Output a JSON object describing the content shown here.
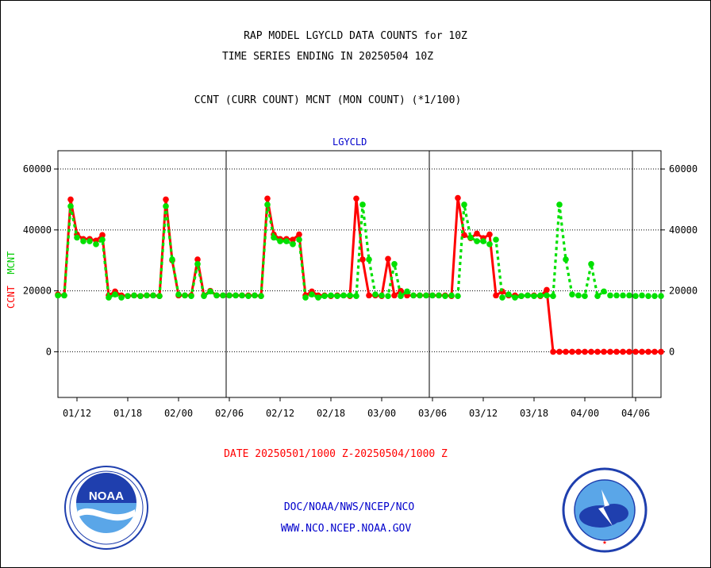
{
  "title_line1": "RAP MODEL LGYCLD DATA COUNTS for 10Z",
  "title_line2": "TIME SERIES ENDING IN 20250504 10Z",
  "title_line3": "CCNT (CURR COUNT) MCNT (MON COUNT) (*1/100)",
  "panel_label": "LGYCLD",
  "ylabel_ccnt": "CCNT",
  "ylabel_mcnt": "MCNT",
  "date_range": "DATE 20250501/1000 Z-20250504/1000 Z",
  "link_doc": "DOC/NOAA/NWS/NCEP/NCO",
  "link_www": "WWW.NCO.NCEP.NOAA.GOV",
  "logos": {
    "left": "NOAA",
    "right": "NATIONAL WEATHER SERVICE"
  },
  "colors": {
    "ccnt": "#ff0000",
    "mcnt": "#00e000",
    "frame": "#000000",
    "panel_label": "#0000cc"
  },
  "chart_data": {
    "type": "line",
    "ylim": [
      -15000,
      66000
    ],
    "yticks": [
      0,
      20000,
      40000,
      60000
    ],
    "ytick_labels": [
      "0",
      "20000",
      "40000",
      "60000"
    ],
    "xticks": [
      {
        "i": 3,
        "label": "01/12"
      },
      {
        "i": 11,
        "label": "01/18"
      },
      {
        "i": 19,
        "label": "02/00"
      },
      {
        "i": 27,
        "label": "02/06"
      },
      {
        "i": 35,
        "label": "02/12"
      },
      {
        "i": 43,
        "label": "02/18"
      },
      {
        "i": 51,
        "label": "03/00"
      },
      {
        "i": 59,
        "label": "03/06"
      },
      {
        "i": 67,
        "label": "03/12"
      },
      {
        "i": 75,
        "label": "03/18"
      },
      {
        "i": 83,
        "label": "04/00"
      },
      {
        "i": 91,
        "label": "04/06"
      }
    ],
    "day_dividers": [
      26.5,
      58.5,
      90.5
    ],
    "x_count": 96,
    "grid": "horizontal dotted",
    "series": [
      {
        "name": "CCNT",
        "style": "solid",
        "values": [
          18800,
          18500,
          50000,
          38500,
          37000,
          37000,
          36500,
          38300,
          18500,
          19800,
          18500,
          18300,
          18500,
          18300,
          18500,
          18500,
          18300,
          50000,
          30000,
          18500,
          18500,
          18500,
          30300,
          18500,
          20000,
          18500,
          18500,
          18500,
          18500,
          18500,
          18500,
          18500,
          18300,
          50300,
          38500,
          37000,
          37000,
          36800,
          38500,
          18500,
          19800,
          18500,
          18500,
          18300,
          18500,
          18500,
          18300,
          50300,
          30300,
          18500,
          18500,
          18300,
          30500,
          18500,
          20000,
          18500,
          18500,
          18500,
          18500,
          18500,
          18500,
          18500,
          18300,
          50500,
          38300,
          37300,
          38800,
          37300,
          38500,
          18500,
          19800,
          18500,
          18500,
          18300,
          18500,
          18500,
          18300,
          20300,
          0,
          0,
          0,
          0,
          0,
          0,
          0,
          0,
          0,
          0,
          0,
          0,
          0,
          0,
          0,
          0,
          0,
          0
        ]
      },
      {
        "name": "MCNT",
        "style": "dotted",
        "values": [
          18500,
          18500,
          47800,
          37500,
          36300,
          36300,
          35300,
          36800,
          17800,
          18800,
          17800,
          18300,
          18500,
          18300,
          18500,
          18500,
          18300,
          47800,
          30300,
          18800,
          18500,
          18300,
          28800,
          18300,
          19800,
          18500,
          18500,
          18500,
          18500,
          18500,
          18300,
          18500,
          18300,
          48300,
          37500,
          36300,
          36300,
          35300,
          36800,
          17800,
          18800,
          17800,
          18300,
          18500,
          18300,
          18500,
          18500,
          18300,
          48300,
          30300,
          18800,
          18500,
          18300,
          28800,
          18300,
          19800,
          18500,
          18500,
          18500,
          18500,
          18500,
          18300,
          18500,
          18300,
          48300,
          37500,
          36300,
          36300,
          35300,
          36800,
          17800,
          18800,
          17800,
          18300,
          18500,
          18300,
          18500,
          18500,
          18300,
          48300,
          30300,
          18800,
          18500,
          18300,
          28800,
          18300,
          19800,
          18500,
          18500,
          18500,
          18500,
          18300,
          18500,
          18300,
          18300,
          18300
        ]
      }
    ]
  }
}
